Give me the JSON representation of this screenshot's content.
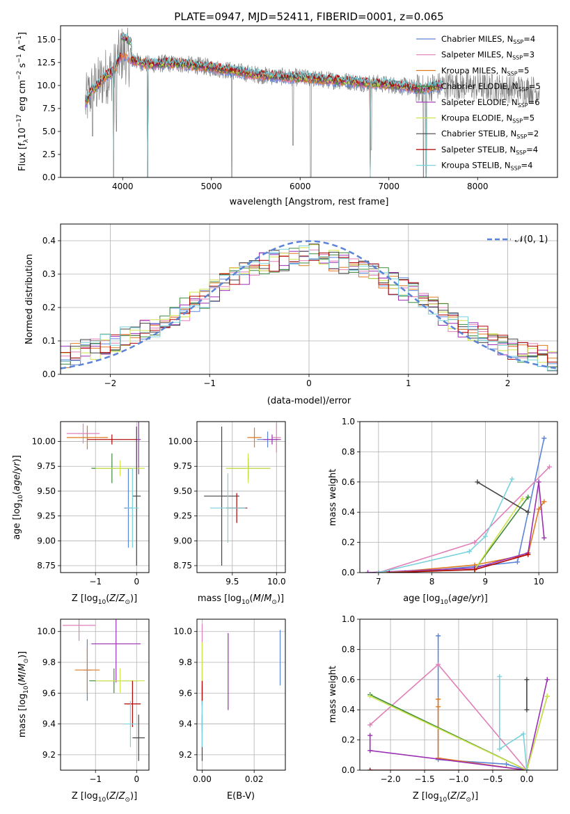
{
  "figure": {
    "title": "PLATE=0947, MJD=52411, FIBERID=0001, z=0.065"
  },
  "colors": {
    "Chabrier MILES": "#5b84d8",
    "Salpeter MILES": "#e07fb8",
    "Kroupa MILES": "#e07a1f",
    "Chabrier ELODIE": "#3c8a3c",
    "Salpeter ELODIE": "#9b2fb3",
    "Kroupa ELODIE": "#cfe34a",
    "Chabrier STELIB": "#444444",
    "Salpeter STELIB": "#b00000",
    "Kroupa STELIB": "#79d2dc",
    "data": "#808080",
    "normal": "#5b84d8"
  },
  "chart_data": [
    {
      "id": "spectrum",
      "type": "line",
      "title": "PLATE=0947, MJD=52411, FIBERID=0001, z=0.065",
      "xlabel": "wavelength [Angstrom, rest frame]",
      "ylabel": "Flux [f_λ 10^-17 erg cm^-2 s^-1 A^-1]",
      "xlim": [
        3300,
        8900
      ],
      "ylim": [
        0,
        16.5
      ],
      "xticks": [
        4000,
        5000,
        6000,
        7000,
        8000
      ],
      "yticks": [
        0.0,
        2.5,
        5.0,
        7.5,
        10.0,
        12.5,
        15.0
      ],
      "grid": false,
      "legend": "top-right",
      "legend_entries": [
        {
          "label": "Chabrier MILES, N",
          "sub": "SSP",
          "value": "=4",
          "series": "Chabrier MILES"
        },
        {
          "label": "Salpeter MILES, N",
          "sub": "SSP",
          "value": "=3",
          "series": "Salpeter MILES"
        },
        {
          "label": "Kroupa MILES, N",
          "sub": "SSP",
          "value": "=5",
          "series": "Kroupa MILES"
        },
        {
          "label": "Chabrier ELODIE, N",
          "sub": "SSP",
          "value": "=5",
          "series": "Chabrier ELODIE"
        },
        {
          "label": "Salpeter ELODIE, N",
          "sub": "SSP",
          "value": "=6",
          "series": "Salpeter ELODIE"
        },
        {
          "label": "Kroupa ELODIE, N",
          "sub": "SSP",
          "value": "=5",
          "series": "Kroupa ELODIE"
        },
        {
          "label": "Chabrier STELIB, N",
          "sub": "SSP",
          "value": "=2",
          "series": "Chabrier STELIB"
        },
        {
          "label": "Salpeter STELIB, N",
          "sub": "SSP",
          "value": "=4",
          "series": "Salpeter STELIB"
        },
        {
          "label": "Kroupa STELIB, N",
          "sub": "SSP",
          "value": "=4",
          "series": "Kroupa STELIB"
        }
      ],
      "data_continuum": {
        "x": [
          3580,
          3650,
          3720,
          3800,
          3900,
          3960,
          4000,
          4100,
          4200,
          4300,
          4500,
          4700,
          4900,
          5100,
          5300,
          5500,
          5700,
          5900,
          6100,
          6300,
          6500,
          6700,
          6900,
          7100,
          7300,
          7400,
          7500,
          7700,
          7900,
          8100,
          8300,
          8500,
          8700
        ],
        "y": [
          8.0,
          9.5,
          10.0,
          11.0,
          11.5,
          13.0,
          13.5,
          12.8,
          12.5,
          12.3,
          12.4,
          12.3,
          12.1,
          11.8,
          11.5,
          11.2,
          11.0,
          10.9,
          10.8,
          10.6,
          10.5,
          10.3,
          10.2,
          10.0,
          9.7,
          9.6,
          9.9,
          10.0,
          9.9,
          9.8,
          9.7,
          9.6,
          9.5
        ]
      },
      "data_dips": [
        {
          "x": 3660,
          "y": 4.5
        },
        {
          "x": 3930,
          "y": 5.0
        },
        {
          "x": 5230,
          "y": 0.0
        },
        {
          "x": 5920,
          "y": 3.5
        },
        {
          "x": 6120,
          "y": 0.0
        },
        {
          "x": 6800,
          "y": 3.0
        },
        {
          "x": 7390,
          "y": 0.0
        },
        {
          "x": 7420,
          "y": 0.5
        }
      ],
      "model_dips": [
        {
          "x": 3900,
          "y": 0.0
        },
        {
          "x": 4280,
          "y": 0.0
        },
        {
          "x": 6790,
          "y": 0.0
        },
        {
          "x": 7420,
          "y": 0.0
        }
      ],
      "model_range": [
        3580,
        7600
      ]
    },
    {
      "id": "residuals",
      "type": "line",
      "xlabel": "(data-model)/error",
      "ylabel": "Normed distribution",
      "xlim": [
        -2.5,
        2.5
      ],
      "ylim": [
        0,
        0.45
      ],
      "xticks": [
        -2,
        -1,
        0,
        1,
        2
      ],
      "yticks": [
        0.0,
        0.1,
        0.2,
        0.3,
        0.4
      ],
      "grid": true,
      "legend": "top-right",
      "legend_label": "𝒩(0, 1)",
      "normal_curve": {
        "mu": 0,
        "sigma": 1
      },
      "hist_bin_width": 0.1,
      "hist_envelope": {
        "x": [
          -2.5,
          -2.0,
          -1.5,
          -1.0,
          -0.5,
          0.0,
          0.5,
          1.0,
          1.5,
          2.0,
          2.5
        ],
        "y": [
          0.05,
          0.09,
          0.15,
          0.24,
          0.33,
          0.36,
          0.32,
          0.25,
          0.15,
          0.08,
          0.04
        ]
      }
    },
    {
      "id": "age_vs_Z",
      "type": "scatter",
      "xlabel": "Z [log10(Z/Z⊙)]",
      "ylabel": "age  [log10(age/yr)]",
      "xlim": [
        -1.85,
        0.3
      ],
      "ylim": [
        8.68,
        10.2
      ],
      "xticks": [
        -1,
        0
      ],
      "yticks": [
        8.75,
        9.0,
        9.25,
        9.5,
        9.75,
        10.0
      ],
      "grid": true,
      "errorbars": [
        {
          "series": "Chabrier MILES",
          "x": -0.2,
          "y": 9.33,
          "xerr": 0.1,
          "yerr": 0.4
        },
        {
          "series": "Salpeter MILES",
          "x": -1.3,
          "y": 10.08,
          "xerr": 0.4,
          "yerr": 0.1
        },
        {
          "series": "Kroupa MILES",
          "x": -1.2,
          "y": 10.04,
          "xerr": 0.5,
          "yerr": 0.12
        },
        {
          "series": "Chabrier ELODIE",
          "x": -0.6,
          "y": 9.73,
          "xerr": 0.5,
          "yerr": 0.15
        },
        {
          "series": "Salpeter ELODIE",
          "x": 0.05,
          "y": 10.02,
          "xerr": 0.05,
          "yerr": 0.35
        },
        {
          "series": "Kroupa ELODIE",
          "x": -0.4,
          "y": 9.73,
          "xerr": 0.6,
          "yerr": 0.08
        },
        {
          "series": "Chabrier STELIB",
          "x": 0.0,
          "y": 9.45,
          "xerr": 0.1,
          "yerr": 0.7
        },
        {
          "series": "Salpeter STELIB",
          "x": -0.6,
          "y": 10.02,
          "xerr": 0.6,
          "yerr": 0.05
        },
        {
          "series": "Kroupa STELIB",
          "x": -0.1,
          "y": 9.33,
          "xerr": 0.15,
          "yerr": 0.4
        }
      ]
    },
    {
      "id": "age_vs_mass",
      "type": "scatter",
      "xlabel": "mass [log10(M/M⊙)]",
      "ylabel": "",
      "xlim": [
        9.1,
        10.1
      ],
      "ylim": [
        8.68,
        10.2
      ],
      "xticks": [
        9.5,
        10.0
      ],
      "yticks": [
        8.75,
        9.0,
        9.25,
        9.5,
        9.75,
        10.0
      ],
      "grid": true,
      "errorbars": [
        {
          "series": "Chabrier MILES",
          "x": 9.9,
          "y": 10.02,
          "xerr": 0.12,
          "yerr": 0.08
        },
        {
          "series": "Salpeter MILES",
          "x": 10.0,
          "y": 10.04,
          "xerr": 0.05,
          "yerr": 0.15
        },
        {
          "series": "Kroupa MILES",
          "x": 9.75,
          "y": 10.04,
          "xerr": 0.08,
          "yerr": 0.1
        },
        {
          "series": "Chabrier ELODIE",
          "x": 9.68,
          "y": 9.73,
          "xerr": 0.25,
          "yerr": 0.1
        },
        {
          "series": "Salpeter ELODIE",
          "x": 9.95,
          "y": 10.02,
          "xerr": 0.1,
          "yerr": 0.05
        },
        {
          "series": "Kroupa ELODIE",
          "x": 9.68,
          "y": 9.73,
          "xerr": 0.25,
          "yerr": 0.15
        },
        {
          "series": "Chabrier STELIB",
          "x": 9.38,
          "y": 9.45,
          "xerr": 0.2,
          "yerr": 0.7
        },
        {
          "series": "Salpeter STELIB",
          "x": 9.55,
          "y": 9.33,
          "xerr": 0.12,
          "yerr": 0.15
        },
        {
          "series": "Kroupa STELIB",
          "x": 9.45,
          "y": 9.33,
          "xerr": 0.2,
          "yerr": 0.35
        }
      ]
    },
    {
      "id": "massweight_vs_age",
      "type": "line",
      "xlabel": "age  [log10(age/yr)]",
      "ylabel": "mass weight",
      "xlim": [
        6.65,
        10.35
      ],
      "ylim": [
        0,
        1.0
      ],
      "xticks": [
        7,
        8,
        9,
        10
      ],
      "yticks": [
        0.0,
        0.2,
        0.4,
        0.6,
        0.8,
        1.0
      ],
      "grid": true,
      "series": [
        {
          "name": "Chabrier MILES",
          "x": [
            7.5,
            8.8,
            9.6,
            10.1
          ],
          "y": [
            0.0,
            0.04,
            0.07,
            0.89
          ]
        },
        {
          "name": "Salpeter MILES",
          "x": [
            7.0,
            8.8,
            10.2
          ],
          "y": [
            0.0,
            0.2,
            0.7
          ]
        },
        {
          "name": "Kroupa MILES",
          "x": [
            7.2,
            8.8,
            9.8,
            10.0,
            10.1
          ],
          "y": [
            0.0,
            0.05,
            0.12,
            0.42,
            0.47
          ]
        },
        {
          "name": "Chabrier ELODIE",
          "x": [
            7.0,
            8.8,
            9.8
          ],
          "y": [
            0.0,
            0.02,
            0.5
          ]
        },
        {
          "name": "Salpeter ELODIE",
          "x": [
            6.8,
            8.8,
            9.8,
            10.0,
            10.1
          ],
          "y": [
            0.0,
            0.03,
            0.13,
            0.6,
            0.23
          ]
        },
        {
          "name": "Kroupa ELODIE",
          "x": [
            7.0,
            8.8,
            9.7
          ],
          "y": [
            0.0,
            0.02,
            0.49
          ]
        },
        {
          "name": "Chabrier STELIB",
          "x": [
            8.85,
            9.8
          ],
          "y": [
            0.6,
            0.4
          ]
        },
        {
          "name": "Salpeter STELIB",
          "x": [
            7.2,
            8.8,
            9.8
          ],
          "y": [
            0.0,
            0.02,
            0.12
          ]
        },
        {
          "name": "Kroupa STELIB",
          "x": [
            7.0,
            8.7,
            9.0,
            9.5
          ],
          "y": [
            0.0,
            0.14,
            0.24,
            0.62
          ]
        }
      ]
    },
    {
      "id": "mass_vs_Z",
      "type": "scatter",
      "xlabel": "Z [log10(Z/Z⊙)]",
      "ylabel": "mass [log10(M/M⊙)]",
      "xlim": [
        -1.85,
        0.3
      ],
      "ylim": [
        9.1,
        10.08
      ],
      "xticks": [
        -1,
        0
      ],
      "yticks": [
        9.2,
        9.4,
        9.6,
        9.8,
        10.0
      ],
      "grid": true,
      "errorbars": [
        {
          "series": "Chabrier MILES",
          "x": -1.2,
          "y": 9.75,
          "xerr": 0.1,
          "yerr": 0.2
        },
        {
          "series": "Salpeter MILES",
          "x": -1.4,
          "y": 10.04,
          "xerr": 0.4,
          "yerr": 0.1
        },
        {
          "series": "Kroupa MILES",
          "x": -1.2,
          "y": 9.75,
          "xerr": 0.3,
          "yerr": 0.15
        },
        {
          "series": "Chabrier ELODIE",
          "x": -0.55,
          "y": 9.68,
          "xerr": 0.6,
          "yerr": 0.08
        },
        {
          "series": "Salpeter ELODIE",
          "x": -0.5,
          "y": 9.92,
          "xerr": 0.6,
          "yerr": 0.25
        },
        {
          "series": "Kroupa ELODIE",
          "x": -0.4,
          "y": 9.68,
          "xerr": 0.6,
          "yerr": 0.08
        },
        {
          "series": "Chabrier STELIB",
          "x": 0.05,
          "y": 9.31,
          "xerr": 0.15,
          "yerr": 0.15
        },
        {
          "series": "Salpeter STELIB",
          "x": -0.1,
          "y": 9.53,
          "xerr": 0.2,
          "yerr": 0.15
        },
        {
          "series": "Kroupa STELIB",
          "x": -0.15,
          "y": 9.4,
          "xerr": 0.15,
          "yerr": 0.15
        }
      ]
    },
    {
      "id": "mass_vs_EBV",
      "type": "scatter",
      "xlabel": "E(B-V)",
      "ylabel": "",
      "xlim": [
        -0.002,
        0.032
      ],
      "ylim": [
        9.1,
        10.08
      ],
      "xticks": [
        0.0,
        0.02
      ],
      "yticks": [
        9.2,
        9.4,
        9.6,
        9.8,
        10.0
      ],
      "grid": true,
      "errorbars": [
        {
          "series": "Chabrier MILES",
          "x": 0.03,
          "y": 9.83,
          "xerr": 0.0,
          "yerr": 0.18
        },
        {
          "series": "Salpeter MILES",
          "x": 0.0,
          "y": 9.9,
          "xerr": 0.0,
          "yerr": 0.15
        },
        {
          "series": "Kroupa MILES",
          "x": 0.0,
          "y": 9.65,
          "xerr": 0.0,
          "yerr": 0.1
        },
        {
          "series": "Chabrier ELODIE",
          "x": 0.0,
          "y": 9.5,
          "xerr": 0.0,
          "yerr": 0.15
        },
        {
          "series": "Salpeter ELODIE",
          "x": 0.01,
          "y": 9.74,
          "xerr": 0.0,
          "yerr": 0.25
        },
        {
          "series": "Kroupa ELODIE",
          "x": 0.0,
          "y": 9.78,
          "xerr": 0.0,
          "yerr": 0.15
        },
        {
          "series": "Chabrier STELIB",
          "x": 0.0,
          "y": 9.31,
          "xerr": 0.0,
          "yerr": 0.15
        },
        {
          "series": "Salpeter STELIB",
          "x": 0.0,
          "y": 9.6,
          "xerr": 0.0,
          "yerr": 0.08
        },
        {
          "series": "Kroupa STELIB",
          "x": 0.0,
          "y": 9.4,
          "xerr": 0.0,
          "yerr": 0.15
        }
      ]
    },
    {
      "id": "massweight_vs_Z",
      "type": "line",
      "xlabel": "Z [log10(Z/Z⊙)]",
      "ylabel": "mass weight",
      "xlim": [
        -2.45,
        0.45
      ],
      "ylim": [
        0,
        1.0
      ],
      "xticks": [
        -2.0,
        -1.5,
        -1.0,
        -0.5,
        0.0
      ],
      "yticks": [
        0.0,
        0.2,
        0.4,
        0.6,
        0.8,
        1.0
      ],
      "grid": true,
      "series": [
        {
          "name": "Chabrier MILES",
          "x": [
            -1.3,
            -1.3,
            -0.3,
            0.0
          ],
          "y": [
            0.89,
            0.07,
            0.04,
            0.0
          ]
        },
        {
          "name": "Salpeter MILES",
          "x": [
            -2.3,
            -1.3,
            0.0
          ],
          "y": [
            0.3,
            0.7,
            0.0
          ]
        },
        {
          "name": "Kroupa MILES",
          "x": [
            -1.3,
            -1.3,
            -1.3,
            0.0
          ],
          "y": [
            0.47,
            0.42,
            0.08,
            0.0
          ]
        },
        {
          "name": "Chabrier ELODIE",
          "x": [
            -2.3,
            0.0,
            0.3
          ],
          "y": [
            0.5,
            0.0,
            0.49
          ]
        },
        {
          "name": "Salpeter ELODIE",
          "x": [
            -2.3,
            -2.3,
            0.0,
            0.3
          ],
          "y": [
            0.23,
            0.13,
            0.0,
            0.6
          ]
        },
        {
          "name": "Kroupa ELODIE",
          "x": [
            -2.3,
            0.0,
            0.3
          ],
          "y": [
            0.49,
            0.0,
            0.49
          ]
        },
        {
          "name": "Chabrier STELIB",
          "x": [
            0.0,
            0.0
          ],
          "y": [
            0.6,
            0.4
          ]
        },
        {
          "name": "Salpeter STELIB",
          "x": [
            -2.3,
            0.0
          ],
          "y": [
            0.0,
            0.0
          ]
        },
        {
          "name": "Kroupa STELIB",
          "x": [
            -0.4,
            -0.4,
            -0.05,
            0.0
          ],
          "y": [
            0.62,
            0.14,
            0.24,
            0.0
          ]
        }
      ]
    }
  ]
}
